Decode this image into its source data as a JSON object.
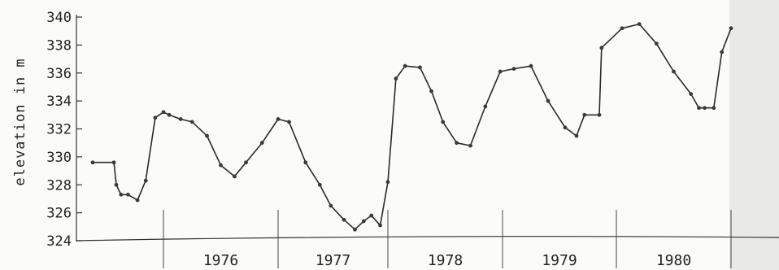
{
  "chart_data": {
    "type": "line",
    "title": "",
    "xlabel": "",
    "ylabel": "elevation in m",
    "ylim": [
      324,
      340
    ],
    "yticks": [
      "340",
      "338",
      "336",
      "334",
      "332",
      "330",
      "328",
      "326",
      "324"
    ],
    "grid": false,
    "period_labels": [
      "1976",
      "1977",
      "1978",
      "1979",
      "1980"
    ],
    "series": [
      {
        "x": [
          1975.4,
          1975.58,
          1975.6,
          1975.64,
          1975.7,
          1975.78,
          1975.85,
          1975.93,
          1976.0,
          1976.05,
          1976.15,
          1976.25,
          1976.38,
          1976.5,
          1976.62,
          1976.72,
          1976.86,
          1977.0,
          1977.1,
          1977.25,
          1977.38,
          1977.48,
          1977.6,
          1977.7,
          1977.78,
          1977.85,
          1977.93,
          1978.0,
          1978.07,
          1978.15,
          1978.28,
          1978.38,
          1978.48,
          1978.6,
          1978.72,
          1978.85,
          1978.98,
          1979.1,
          1979.25,
          1979.4,
          1979.55,
          1979.65,
          1979.72,
          1979.85,
          1979.87,
          1980.05,
          1980.2,
          1980.35,
          1980.5,
          1980.65,
          1980.72,
          1980.77,
          1980.85,
          1980.92,
          1981.0
        ],
        "y": [
          329.6,
          329.6,
          328.0,
          327.3,
          327.3,
          326.9,
          328.3,
          332.8,
          333.2,
          333.0,
          332.7,
          332.5,
          331.5,
          329.4,
          328.6,
          329.6,
          331.0,
          332.7,
          332.5,
          329.6,
          328.0,
          326.5,
          325.5,
          324.8,
          325.4,
          325.8,
          325.1,
          328.2,
          335.6,
          336.5,
          336.4,
          334.7,
          332.5,
          331.0,
          330.8,
          333.6,
          336.1,
          336.3,
          336.5,
          334.0,
          332.1,
          331.5,
          333.0,
          333.0,
          337.8,
          339.2,
          339.5,
          338.1,
          336.1,
          334.5,
          333.5,
          333.5,
          333.5,
          337.5,
          339.2
        ]
      }
    ]
  }
}
